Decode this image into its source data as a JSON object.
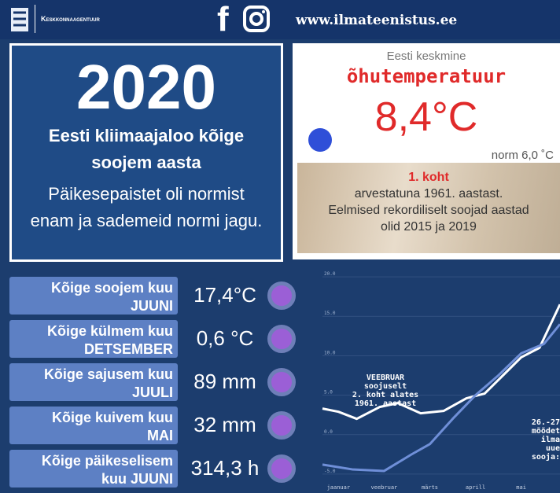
{
  "header": {
    "agency": "Keskkonnaagentuur",
    "facebook": "f",
    "website": "www.ilmateenistus.ee"
  },
  "main": {
    "year": "2020",
    "headline_1": "Eesti kliimaajaloo kõige",
    "headline_2": "soojem aasta",
    "text_1": "Päikesepaistet oli normist",
    "text_2": "enam ja sademeid normi jagu."
  },
  "temperature": {
    "caption": "Eesti keskmine",
    "title": "õhutemperatuur",
    "value": "8,4°C",
    "norm": "norm 6,0 ˚C",
    "rank": "1. koht",
    "rank_text_1": "arvestatuna 1961. aastast.",
    "rank_text_2": "Eelmised rekordiliselt soojad aastad",
    "rank_text_3": "olid 2015 ja 2019"
  },
  "stats": [
    {
      "label": "Kõige soojem kuu",
      "month": "JUUNI",
      "value": "17,4°C"
    },
    {
      "label": "Kõige külmem kuu",
      "month": "DETSEMBER",
      "value": "0,6 °C"
    },
    {
      "label": "Kõige sajusem kuu",
      "month": "JUULI",
      "value": "89 mm"
    },
    {
      "label": "Kõige kuivem kuu",
      "month": "MAI",
      "value": "32 mm"
    },
    {
      "label": "Kõige päikeselisem",
      "month": "kuu JUUNI",
      "value": "314,3 h"
    }
  ],
  "chart": {
    "type": "line",
    "xlim": [
      -0.35,
      4.85
    ],
    "ylim": [
      -6,
      21
    ],
    "xticks": [
      {
        "value": 0,
        "label": "jaanuar"
      },
      {
        "value": 1,
        "label": "veebruar"
      },
      {
        "value": 2,
        "label": "märts"
      },
      {
        "value": 3,
        "label": "aprill"
      },
      {
        "value": 4,
        "label": "mai"
      }
    ],
    "yticks": [
      {
        "value": 20,
        "label": "20.0"
      },
      {
        "value": 15,
        "label": "15.0"
      },
      {
        "value": 10,
        "label": "10.0"
      },
      {
        "value": 5,
        "label": "5.0"
      },
      {
        "value": 0,
        "label": "0.0"
      },
      {
        "value": -5,
        "label": "-5.0"
      }
    ],
    "grid": true,
    "series": [
      {
        "color": "#ffffff",
        "x": [
          -0.35,
          0,
          0.4,
          0.9,
          1.3,
          1.8,
          2.3,
          2.8,
          3.2,
          3.6,
          4.0,
          4.4,
          4.85
        ],
        "values": [
          3.3,
          2.9,
          2.0,
          3.5,
          4.0,
          2.7,
          3.0,
          4.6,
          5.2,
          7.5,
          9.8,
          11.0,
          16.5
        ]
      },
      {
        "color": "#6f8fd8",
        "x": [
          -0.35,
          0.3,
          1.0,
          1.6,
          2.0,
          2.5,
          3.0,
          3.5,
          4.0,
          4.5,
          4.85
        ],
        "values": [
          -3.8,
          -4.4,
          -4.6,
          -2.5,
          -1.2,
          2.0,
          5.0,
          7.5,
          10.3,
          11.5,
          14.0
        ]
      }
    ],
    "annotation": [
      "VEEBRUAR",
      "soojuselt",
      "2. koht alates",
      "1961. aastast"
    ],
    "annotation_right": [
      "26.-27",
      "mõõdet",
      "ilma",
      "uue",
      "sooja:"
    ]
  }
}
